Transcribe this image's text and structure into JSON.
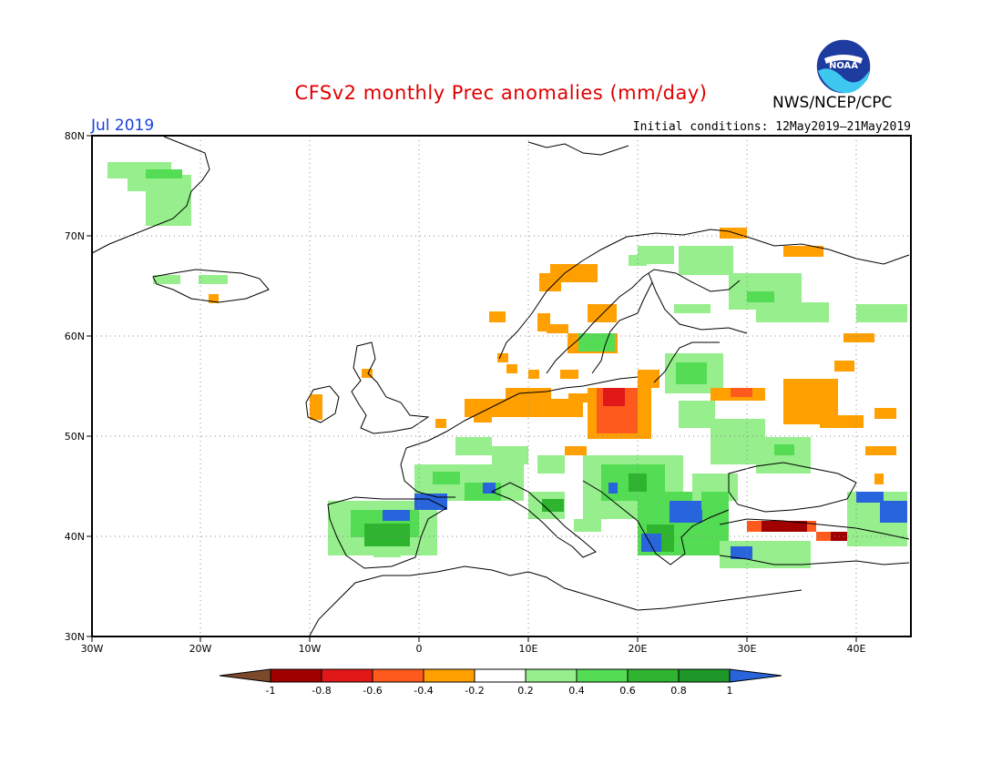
{
  "header": {
    "title": "CFSv2 monthly Prec anomalies (mm/day)",
    "org": "NWS/NCEP/CPC",
    "month": "Jul 2019",
    "initial_conditions": "Initial conditions: 12May2019–21May2019",
    "logo_text": "NOAA"
  },
  "map": {
    "lon_labels": [
      "30W",
      "20W",
      "10W",
      "0",
      "10E",
      "20E",
      "30E",
      "40E"
    ],
    "lat_labels": [
      "30N",
      "40N",
      "50N",
      "60N",
      "70N",
      "80N"
    ],
    "lon_range": [
      -30,
      45
    ],
    "lat_range": [
      30,
      80
    ],
    "gridlines": "dotted"
  },
  "colorbar": {
    "tick_labels": [
      "-1",
      "-0.8",
      "-0.6",
      "-0.4",
      "-0.2",
      "0.2",
      "0.4",
      "0.6",
      "0.8",
      "1"
    ],
    "colors": [
      "#7a4a2a",
      "#a00000",
      "#e01818",
      "#ff5a1e",
      "#ffa000",
      "#ffffff",
      "#96ee8c",
      "#55dc55",
      "#2eb42e",
      "#1e9628",
      "#2864dc"
    ]
  },
  "colors": {
    "land_outline": "#000000",
    "grid": "#888888"
  }
}
